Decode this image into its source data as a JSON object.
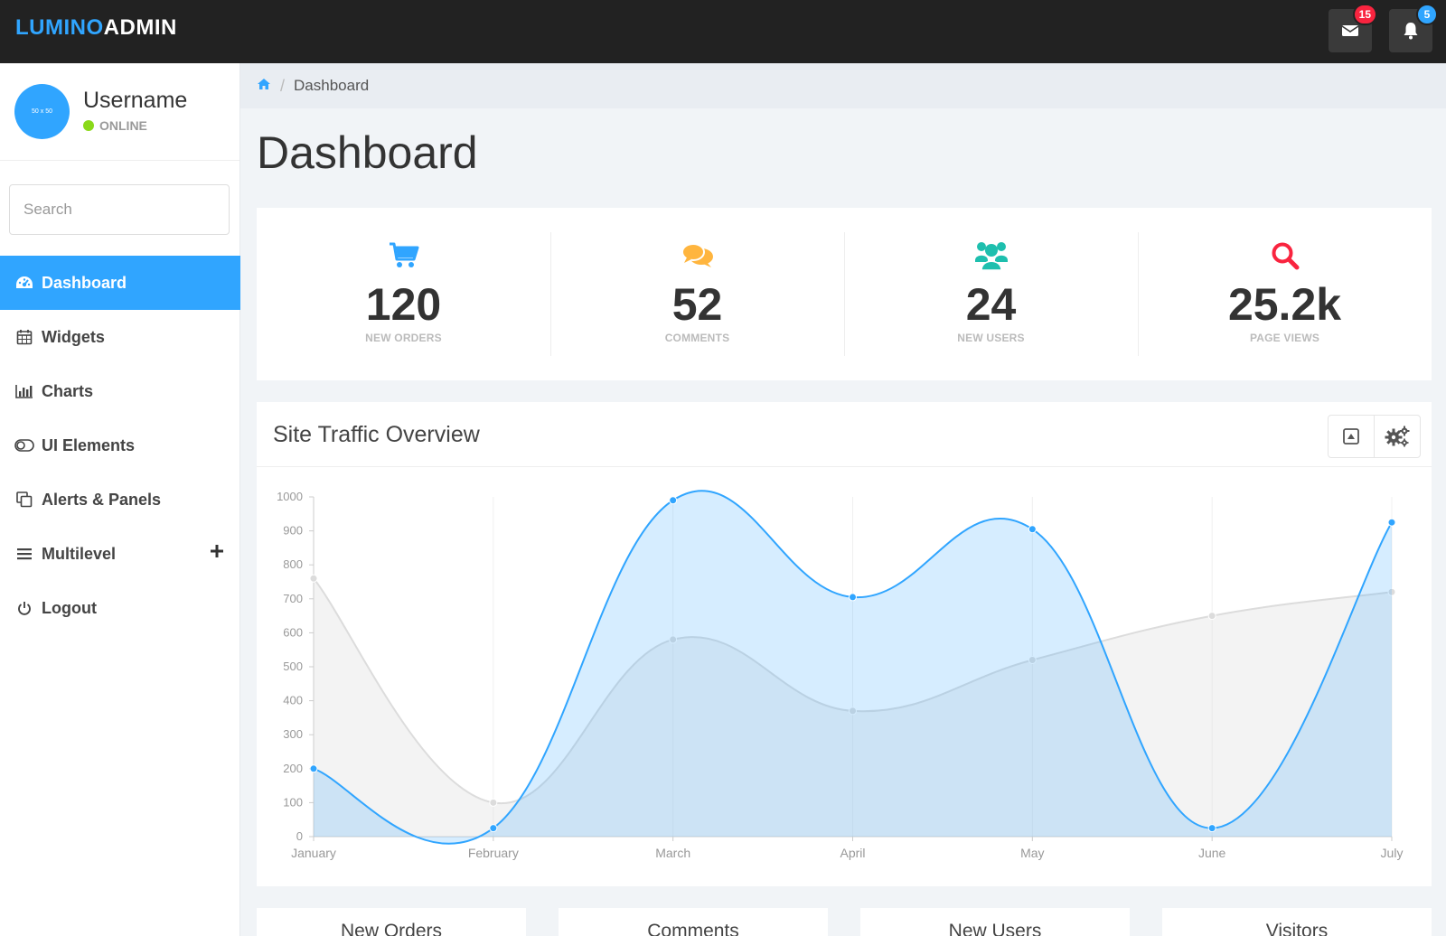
{
  "brand": {
    "part1": "LUMINO",
    "part2": "ADMIN",
    "accent": "#30a5ff"
  },
  "topbar": {
    "mail_badge": "15",
    "bell_badge": "5",
    "mail_badge_color": "#f9243f",
    "bell_badge_color": "#30a5ff",
    "mail_icon": "envelope-icon",
    "bell_icon": "bell-icon"
  },
  "profile": {
    "username": "Username",
    "status": "ONLINE",
    "avatar_text": "50 x 50"
  },
  "search": {
    "placeholder": "Search"
  },
  "sidebar": {
    "items": [
      {
        "label": "Dashboard",
        "icon": "dashboard-icon",
        "active": true
      },
      {
        "label": "Widgets",
        "icon": "calendar-icon"
      },
      {
        "label": "Charts",
        "icon": "bar-chart-icon"
      },
      {
        "label": "UI Elements",
        "icon": "toggle-icon"
      },
      {
        "label": "Alerts & Panels",
        "icon": "clone-icon"
      },
      {
        "label": "Multilevel",
        "icon": "list-icon"
      },
      {
        "label": "Logout",
        "icon": "power-icon"
      }
    ]
  },
  "breadcrumb": {
    "current": "Dashboard"
  },
  "page": {
    "title": "Dashboard"
  },
  "stats": [
    {
      "value": "120",
      "label": "NEW ORDERS",
      "icon": "cart-icon",
      "color": "#30a5ff"
    },
    {
      "value": "52",
      "label": "COMMENTS",
      "icon": "comments-icon",
      "color": "#ffb53e"
    },
    {
      "value": "24",
      "label": "NEW USERS",
      "icon": "users-icon",
      "color": "#1ebfae"
    },
    {
      "value": "25.2k",
      "label": "PAGE VIEWS",
      "icon": "search-icon",
      "color": "#f9243f"
    }
  ],
  "panel": {
    "title": "Site Traffic Overview"
  },
  "chart_data": {
    "type": "area",
    "x": [
      "January",
      "February",
      "March",
      "April",
      "May",
      "June",
      "July"
    ],
    "ylim": [
      0,
      1000
    ],
    "yticks": [
      0,
      100,
      200,
      300,
      400,
      500,
      600,
      700,
      800,
      900,
      1000
    ],
    "grid": true,
    "series": [
      {
        "values": [
          760,
          100,
          580,
          370,
          520,
          650,
          720
        ],
        "color": "#dcdcdc"
      },
      {
        "values": [
          200,
          25,
          990,
          705,
          905,
          25,
          925
        ],
        "color": "#30a5ff"
      }
    ]
  },
  "mini_panels": [
    "New Orders",
    "Comments",
    "New Users",
    "Visitors"
  ]
}
